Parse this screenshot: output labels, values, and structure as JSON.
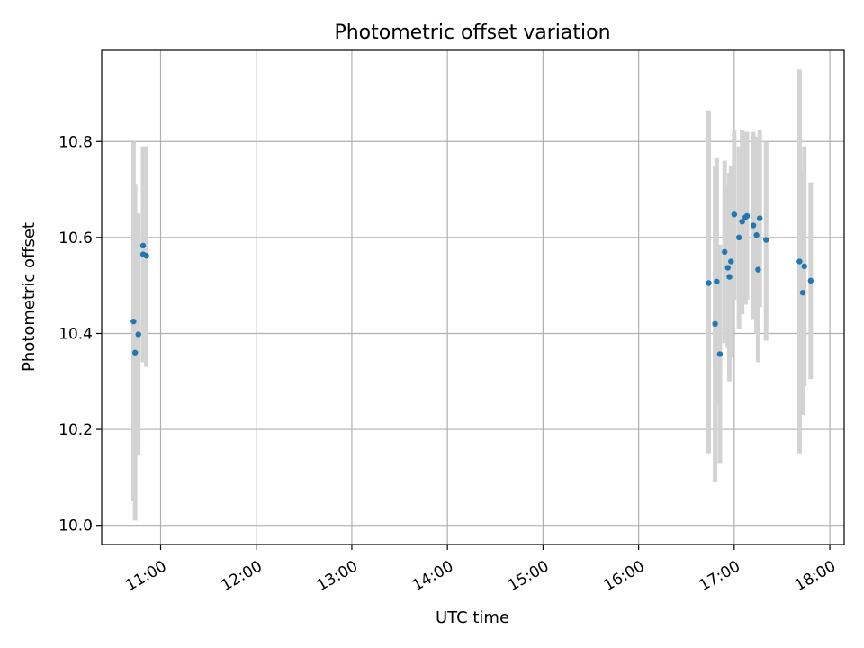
{
  "chart_data": {
    "type": "scatter",
    "title": "Photometric offset variation",
    "xlabel": "UTC time",
    "ylabel": "Photometric offset",
    "x_axis": {
      "range": [
        "10:23",
        "18:09"
      ],
      "ticks": [
        "11:00",
        "12:00",
        "13:00",
        "14:00",
        "15:00",
        "16:00",
        "17:00",
        "18:00"
      ]
    },
    "y_axis": {
      "range": [
        9.96,
        10.99
      ],
      "ticks": [
        10.0,
        10.2,
        10.4,
        10.6,
        10.8
      ]
    },
    "grid": true,
    "colors": {
      "points": "#1f77b4",
      "error_bars": "#d3d3d3"
    },
    "points": [
      {
        "x": "10:43",
        "y": 10.425,
        "err_low": 10.05,
        "err_high": 10.8
      },
      {
        "x": "10:44",
        "y": 10.36,
        "err_low": 10.01,
        "err_high": 10.71
      },
      {
        "x": "10:46",
        "y": 10.398,
        "err_low": 10.145,
        "err_high": 10.65
      },
      {
        "x": "10:49",
        "y": 10.583,
        "err_low": 10.38,
        "err_high": 10.78
      },
      {
        "x": "10:49",
        "y": 10.565,
        "err_low": 10.34,
        "err_high": 10.79
      },
      {
        "x": "10:51",
        "y": 10.562,
        "err_low": 10.33,
        "err_high": 10.79
      },
      {
        "x": "16:44",
        "y": 10.505,
        "err_low": 10.15,
        "err_high": 10.865
      },
      {
        "x": "16:48",
        "y": 10.42,
        "err_low": 10.09,
        "err_high": 10.75
      },
      {
        "x": "16:49",
        "y": 10.508,
        "err_low": 10.25,
        "err_high": 10.765
      },
      {
        "x": "16:51",
        "y": 10.357,
        "err_low": 10.13,
        "err_high": 10.585
      },
      {
        "x": "16:54",
        "y": 10.57,
        "err_low": 10.38,
        "err_high": 10.76
      },
      {
        "x": "16:56",
        "y": 10.537,
        "err_low": 10.37,
        "err_high": 10.705
      },
      {
        "x": "16:57",
        "y": 10.518,
        "err_low": 10.3,
        "err_high": 10.735
      },
      {
        "x": "16:58",
        "y": 10.55,
        "err_low": 10.35,
        "err_high": 10.75
      },
      {
        "x": "17:00",
        "y": 10.648,
        "err_low": 10.47,
        "err_high": 10.825
      },
      {
        "x": "17:03",
        "y": 10.6,
        "err_low": 10.41,
        "err_high": 10.79
      },
      {
        "x": "17:05",
        "y": 10.633,
        "err_low": 10.44,
        "err_high": 10.825
      },
      {
        "x": "17:07",
        "y": 10.642,
        "err_low": 10.46,
        "err_high": 10.82
      },
      {
        "x": "17:08",
        "y": 10.645,
        "err_low": 10.47,
        "err_high": 10.82
      },
      {
        "x": "17:12",
        "y": 10.625,
        "err_low": 10.43,
        "err_high": 10.82
      },
      {
        "x": "17:14",
        "y": 10.605,
        "err_low": 10.4,
        "err_high": 10.81
      },
      {
        "x": "17:15",
        "y": 10.533,
        "err_low": 10.34,
        "err_high": 10.72
      },
      {
        "x": "17:16",
        "y": 10.64,
        "err_low": 10.455,
        "err_high": 10.825
      },
      {
        "x": "17:20",
        "y": 10.595,
        "err_low": 10.385,
        "err_high": 10.8
      },
      {
        "x": "17:41",
        "y": 10.55,
        "err_low": 10.15,
        "err_high": 10.95
      },
      {
        "x": "17:43",
        "y": 10.485,
        "err_low": 10.23,
        "err_high": 10.74
      },
      {
        "x": "17:44",
        "y": 10.54,
        "err_low": 10.29,
        "err_high": 10.79
      },
      {
        "x": "17:48",
        "y": 10.51,
        "err_low": 10.305,
        "err_high": 10.715
      }
    ]
  }
}
